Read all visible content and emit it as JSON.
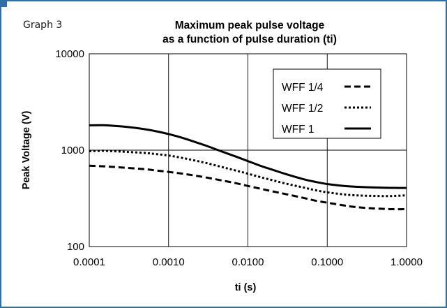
{
  "graph_label": "Graph 3",
  "colors": {
    "frame": "#2f6fa7",
    "grid": "#000000",
    "series": "#000000"
  },
  "chart_data": {
    "type": "line",
    "title": [
      "Maximum peak pulse voltage",
      "as a function of pulse duration (ti)"
    ],
    "xlabel": "ti (s)",
    "ylabel": "Peak Voltage (V)",
    "x_scale": "log",
    "y_scale": "log",
    "xlim": [
      0.0001,
      1
    ],
    "ylim": [
      100,
      10000
    ],
    "x_ticks": [
      0.0001,
      0.001,
      0.01,
      0.1,
      1
    ],
    "x_tick_labels": [
      "0.0001",
      "0.0010",
      "0.0100",
      "0.1000",
      "1.0000"
    ],
    "y_ticks": [
      100,
      1000,
      10000
    ],
    "y_tick_labels": [
      "100",
      "1000",
      "10000"
    ],
    "grid": true,
    "legend_position": "top-right",
    "x": [
      0.0001,
      0.00015,
      0.0002,
      0.0003,
      0.0005,
      0.0007,
      0.001,
      0.0015,
      0.002,
      0.003,
      0.005,
      0.007,
      0.01,
      0.015,
      0.02,
      0.03,
      0.05,
      0.07,
      0.1,
      0.15,
      0.2,
      0.3,
      0.5,
      0.7,
      1.0
    ],
    "series": [
      {
        "name": "WFF 1/4",
        "dash": "dashed",
        "values": [
          690,
          680,
          670,
          655,
          635,
          615,
          595,
          570,
          550,
          520,
          480,
          455,
          425,
          395,
          375,
          350,
          320,
          300,
          285,
          270,
          260,
          252,
          246,
          244,
          244
        ]
      },
      {
        "name": "WFF 1/2",
        "dash": "dotted",
        "values": [
          975,
          985,
          975,
          960,
          935,
          910,
          880,
          830,
          790,
          735,
          660,
          615,
          570,
          520,
          490,
          450,
          410,
          385,
          365,
          350,
          342,
          337,
          334,
          335,
          340
        ]
      },
      {
        "name": "WFF 1",
        "dash": "solid",
        "values": [
          1810,
          1815,
          1790,
          1740,
          1650,
          1570,
          1470,
          1340,
          1240,
          1110,
          950,
          860,
          770,
          680,
          630,
          565,
          500,
          470,
          445,
          428,
          420,
          413,
          408,
          406,
          405
        ]
      }
    ]
  }
}
